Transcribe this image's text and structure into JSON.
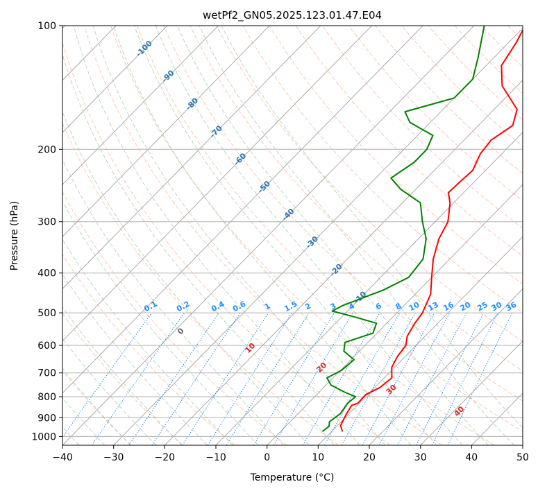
{
  "chart_data": {
    "type": "line",
    "subtype": "skew-t log-p",
    "title": "wetPf2_GN05.2025.123.01.47.E04",
    "xlabel": "Temperature (°C)",
    "ylabel": "Pressure (hPa)",
    "xlim": [
      -40,
      50
    ],
    "ylim": [
      1050,
      100
    ],
    "y_scale": "log",
    "grid": true,
    "x_ticks": [
      "−40",
      "−30",
      "−20",
      "−10",
      "0",
      "10",
      "20",
      "30",
      "40",
      "50"
    ],
    "y_ticks": [
      "100",
      "200",
      "300",
      "400",
      "500",
      "600",
      "700",
      "800",
      "900",
      "1000"
    ],
    "isotherm_labels": [
      "-100",
      "-90",
      "-80",
      "-70",
      "-60",
      "-50",
      "-40",
      "-30",
      "-20",
      "-10"
    ],
    "mixing_ratio_labels": [
      "0.1",
      "0.2",
      "0.4",
      "0.6",
      "1",
      "1.5",
      "2",
      "3",
      "4",
      "6",
      "8",
      "10",
      "13",
      "16",
      "20",
      "25",
      "30",
      "36"
    ],
    "moist_adiabat_labels": [
      "0",
      "10",
      "20",
      "30",
      "40"
    ],
    "colors": {
      "temperature": "#ff0000",
      "dewpoint": "#008000",
      "isotherm": "#2a75b3",
      "mixing_ratio": "#1e90ff",
      "dry_adiabat": "#ffa07a",
      "moist_adiabat": "#8fbc8f",
      "isotherm_grid": "#aaaaaa"
    },
    "series": [
      {
        "name": "",
        "color": "#ff0000",
        "points": [
          {
            "p": 970,
            "t": 12
          },
          {
            "p": 940,
            "t": 10.6
          },
          {
            "p": 880,
            "t": 9.5
          },
          {
            "p": 840,
            "t": 8.9
          },
          {
            "p": 830,
            "t": 9.7
          },
          {
            "p": 790,
            "t": 9.6
          },
          {
            "p": 760,
            "t": 11.0
          },
          {
            "p": 720,
            "t": 11.5
          },
          {
            "p": 680,
            "t": 9.5
          },
          {
            "p": 640,
            "t": 8.5
          },
          {
            "p": 600,
            "t": 8.0
          },
          {
            "p": 570,
            "t": 6.5
          },
          {
            "p": 530,
            "t": 5.5
          },
          {
            "p": 500,
            "t": 5.0
          },
          {
            "p": 450,
            "t": 3.0
          },
          {
            "p": 410,
            "t": 0.0
          },
          {
            "p": 370,
            "t": -3.2
          },
          {
            "p": 330,
            "t": -6.0
          },
          {
            "p": 300,
            "t": -7.5
          },
          {
            "p": 270,
            "t": -10.7
          },
          {
            "p": 255,
            "t": -13.0
          },
          {
            "p": 240,
            "t": -12.8
          },
          {
            "p": 225,
            "t": -12.5
          },
          {
            "p": 205,
            "t": -14.2
          },
          {
            "p": 190,
            "t": -14.7
          },
          {
            "p": 175,
            "t": -13.3
          },
          {
            "p": 160,
            "t": -15.5
          },
          {
            "p": 140,
            "t": -23.0
          },
          {
            "p": 125,
            "t": -27.0
          },
          {
            "p": 110,
            "t": -28.5
          },
          {
            "p": 100,
            "t": -30.0
          }
        ]
      },
      {
        "name": "",
        "color": "#008000",
        "points": [
          {
            "p": 970,
            "t": 8.2
          },
          {
            "p": 945,
            "t": 8.5
          },
          {
            "p": 920,
            "t": 7.7
          },
          {
            "p": 880,
            "t": 8.3
          },
          {
            "p": 830,
            "t": 7.7
          },
          {
            "p": 800,
            "t": 8.0
          },
          {
            "p": 780,
            "t": 5.0
          },
          {
            "p": 750,
            "t": 1.0
          },
          {
            "p": 720,
            "t": -1.2
          },
          {
            "p": 690,
            "t": 0.2
          },
          {
            "p": 650,
            "t": 0.6
          },
          {
            "p": 620,
            "t": -3.0
          },
          {
            "p": 590,
            "t": -4.5
          },
          {
            "p": 560,
            "t": -0.8
          },
          {
            "p": 530,
            "t": -2.0
          },
          {
            "p": 510,
            "t": -8.0
          },
          {
            "p": 495,
            "t": -13.0
          },
          {
            "p": 480,
            "t": -12.0
          },
          {
            "p": 440,
            "t": -7.0
          },
          {
            "p": 410,
            "t": -4.5
          },
          {
            "p": 370,
            "t": -5.2
          },
          {
            "p": 330,
            "t": -8.5
          },
          {
            "p": 300,
            "t": -12.5
          },
          {
            "p": 270,
            "t": -16.5
          },
          {
            "p": 250,
            "t": -23.0
          },
          {
            "p": 235,
            "t": -27.0
          },
          {
            "p": 215,
            "t": -25.5
          },
          {
            "p": 200,
            "t": -25.5
          },
          {
            "p": 185,
            "t": -27.0
          },
          {
            "p": 172,
            "t": -34.0
          },
          {
            "p": 162,
            "t": -37.0
          },
          {
            "p": 150,
            "t": -30.0
          },
          {
            "p": 135,
            "t": -30.0
          },
          {
            "p": 120,
            "t": -33.0
          },
          {
            "p": 100,
            "t": -38.0
          }
        ]
      }
    ]
  }
}
